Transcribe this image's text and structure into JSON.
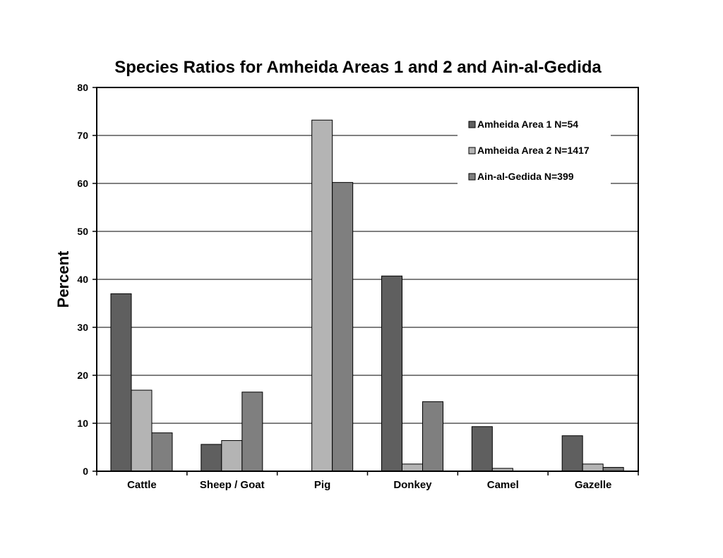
{
  "chart_data": {
    "type": "bar",
    "title": "Species Ratios for Amheida Areas 1 and 2 and Ain-al-Gedida",
    "xlabel": "",
    "ylabel": "Percent",
    "ylim": [
      0,
      80
    ],
    "yticks": [
      "0",
      "10",
      "20",
      "30",
      "40",
      "50",
      "60",
      "70",
      "80"
    ],
    "categories": [
      "Cattle",
      "Sheep / Goat",
      "Pig",
      "Donkey",
      "Camel",
      "Gazelle"
    ],
    "series": [
      {
        "name": "Amheida Area 1 N=54",
        "color": "#5f5f5f",
        "values": [
          37.0,
          5.6,
          0,
          40.7,
          9.3,
          7.4
        ]
      },
      {
        "name": "Amheida Area 2 N=1417",
        "color": "#b4b4b4",
        "values": [
          16.9,
          6.4,
          73.2,
          1.5,
          0.6,
          1.5
        ]
      },
      {
        "name": "Ain-al-Gedida N=399",
        "color": "#7f7f7f",
        "values": [
          8.0,
          16.5,
          60.2,
          14.5,
          0,
          0.8
        ]
      }
    ],
    "grid": true,
    "legend_position": "top-right"
  }
}
